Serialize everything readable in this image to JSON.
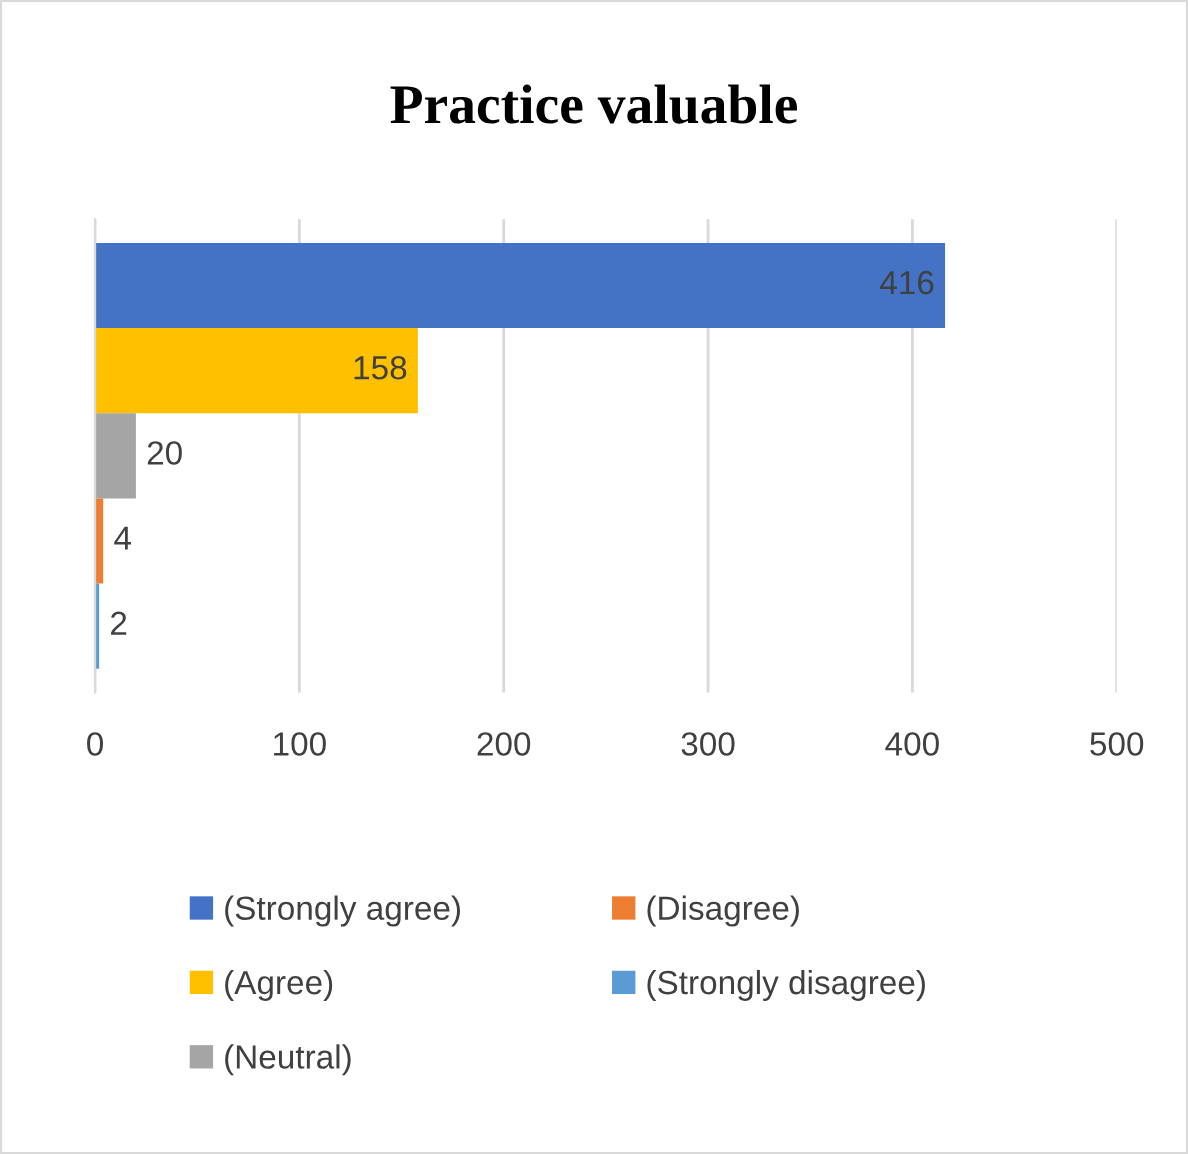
{
  "chart_data": {
    "type": "bar",
    "title": "Practice valuable",
    "orientation": "horizontal",
    "categories": [
      null
    ],
    "series": [
      {
        "name": "(Strongly agree)",
        "color": "#4472c4",
        "values": [
          416
        ]
      },
      {
        "name": "(Agree)",
        "color": "#ffc000",
        "values": [
          158
        ]
      },
      {
        "name": "(Neutral)",
        "color": "#a5a5a5",
        "values": [
          20
        ]
      },
      {
        "name": "(Disagree)",
        "color": "#ed7d31",
        "values": [
          4
        ]
      },
      {
        "name": "(Strongly disagree)",
        "color": "#5b9bd5",
        "values": [
          2
        ]
      }
    ],
    "xlim": [
      0,
      500
    ],
    "xticks": [
      0,
      100,
      200,
      300,
      400,
      500
    ],
    "grid": "x",
    "legend": "bottom",
    "data_labels": true
  }
}
